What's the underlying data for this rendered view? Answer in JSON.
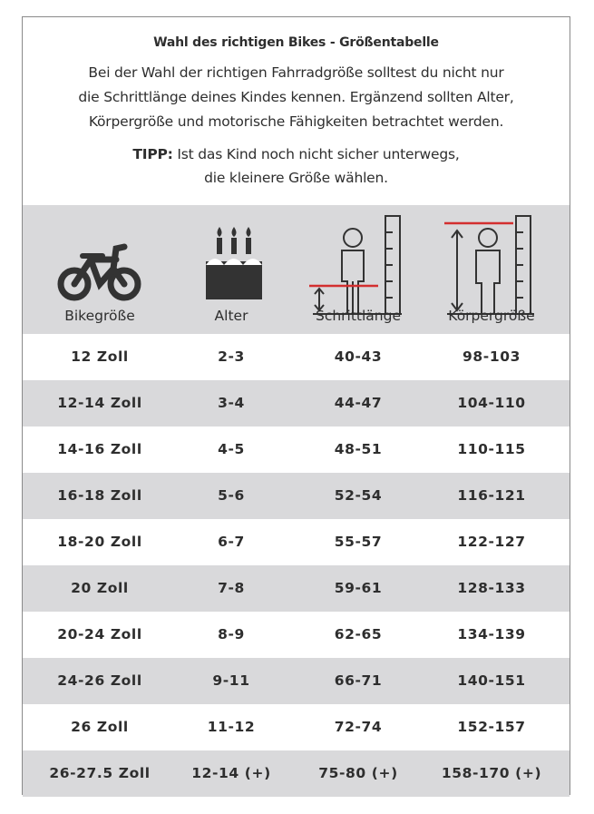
{
  "header": {
    "title": "Wahl des richtigen Bikes - Größentabelle",
    "lines": [
      "Bei der Wahl der richtigen Fahrradgröße solltest du nicht nur",
      "die Schrittlänge deines Kindes kennen. Ergänzend sollten Alter,",
      "Körpergröße und motorische Fähigkeiten betrachtet werden."
    ],
    "tip_label": "TIPP:",
    "tip_lines": [
      "Ist das Kind noch nicht sicher unterwegs,",
      "die kleinere Größe wählen."
    ]
  },
  "table": {
    "columns": [
      "Bikegröße",
      "Alter",
      "Schrittlänge",
      "Körpergröße"
    ],
    "rows": [
      [
        "12 Zoll",
        "2-3",
        "40-43",
        "98-103"
      ],
      [
        "12-14 Zoll",
        "3-4",
        "44-47",
        "104-110"
      ],
      [
        "14-16 Zoll",
        "4-5",
        "48-51",
        "110-115"
      ],
      [
        "16-18 Zoll",
        "5-6",
        "52-54",
        "116-121"
      ],
      [
        "18-20 Zoll",
        "6-7",
        "55-57",
        "122-127"
      ],
      [
        "20 Zoll",
        "7-8",
        "59-61",
        "128-133"
      ],
      [
        "20-24 Zoll",
        "8-9",
        "62-65",
        "134-139"
      ],
      [
        "24-26 Zoll",
        "9-11",
        "66-71",
        "140-151"
      ],
      [
        "26 Zoll",
        "11-12",
        "72-74",
        "152-157"
      ],
      [
        "26-27.5 Zoll",
        "12-14 (+)",
        "75-80 (+)",
        "158-170 (+)"
      ]
    ]
  }
}
